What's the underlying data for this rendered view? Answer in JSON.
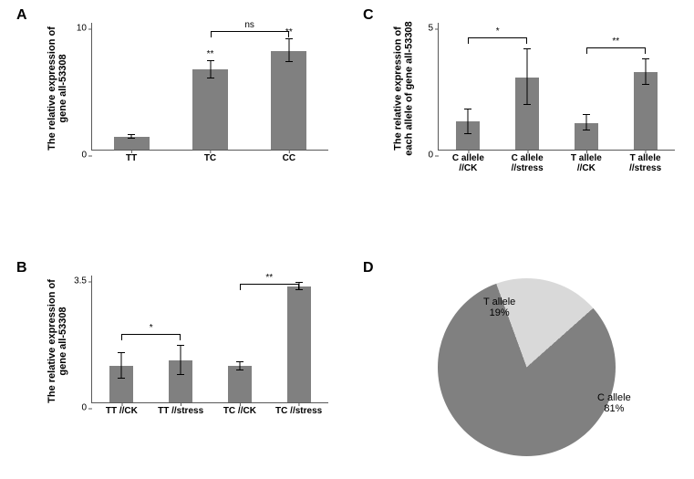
{
  "colors": {
    "bar": "#808080",
    "axis": "#595959",
    "text": "#000000",
    "pie_c": "#808080",
    "pie_t": "#d9d9d9",
    "bg": "#ffffff"
  },
  "panelA": {
    "label": "A",
    "ylabel1": "The relative expression of",
    "ylabel2": "gene all-53308",
    "ylim": [
      0,
      10
    ],
    "yticks": [
      0,
      10
    ],
    "categories": [
      "TT",
      "TC",
      "CC"
    ],
    "values": [
      1.0,
      6.3,
      7.8
    ],
    "err": [
      0.15,
      0.7,
      0.9
    ],
    "bar_width": 0.45,
    "sig_marks": [
      "",
      "**",
      "**"
    ],
    "bracket": {
      "from": 1,
      "to": 2,
      "label": "ns"
    }
  },
  "panelB": {
    "label": "B",
    "ylabel1": "The relative expression of",
    "ylabel2": "gene all-53308",
    "ylim": [
      0,
      3.5
    ],
    "yticks": [
      0,
      3.5
    ],
    "categories": [
      "TT //CK",
      "TT //stress",
      "TC //CK",
      "TC //stress"
    ],
    "values": [
      1.0,
      1.15,
      1.0,
      3.2
    ],
    "err": [
      0.35,
      0.4,
      0.12,
      0.1
    ],
    "bar_width": 0.4,
    "brackets": [
      {
        "from": 0,
        "to": 1,
        "label": "*"
      },
      {
        "from": 2,
        "to": 3,
        "label": "**"
      }
    ]
  },
  "panelC": {
    "label": "C",
    "ylabel1": "The relative expression of",
    "ylabel2": "each allele of gene all-53308",
    "ylim": [
      0,
      5
    ],
    "yticks": [
      0,
      5
    ],
    "categories": [
      "C allele\n//CK",
      "C allele\n//stress",
      "T allele\n//CK",
      "T allele\n//stress"
    ],
    "values": [
      1.1,
      2.85,
      1.05,
      3.05
    ],
    "err": [
      0.5,
      1.1,
      0.3,
      0.5
    ],
    "bar_width": 0.4,
    "brackets": [
      {
        "from": 0,
        "to": 1,
        "label": "*"
      },
      {
        "from": 2,
        "to": 3,
        "label": "**"
      }
    ]
  },
  "panelD": {
    "label": "D",
    "slices": [
      {
        "label": "C allele",
        "value": 81,
        "display": "C allele\n81%",
        "color": "#808080"
      },
      {
        "label": "T allele",
        "value": 19,
        "display": "T allele\n19%",
        "color": "#d9d9d9"
      }
    ]
  }
}
